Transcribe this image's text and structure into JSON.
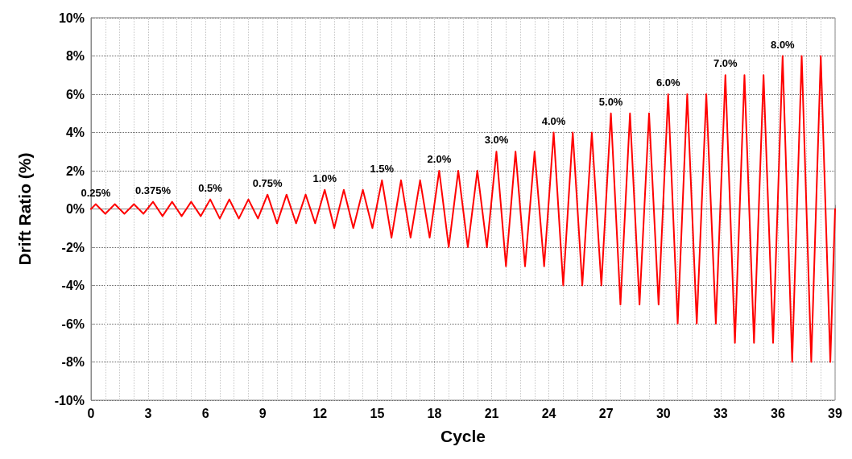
{
  "chart_data": {
    "type": "line",
    "xlabel": "Cycle",
    "ylabel": "Drift Ratio (%)",
    "x": [
      0,
      0.25,
      0.75,
      1.25,
      1.75,
      2.25,
      2.75,
      3.25,
      3.75,
      4.25,
      4.75,
      5.25,
      5.75,
      6.25,
      6.75,
      7.25,
      7.75,
      8.25,
      8.75,
      9.25,
      9.75,
      10.25,
      10.75,
      11.25,
      11.75,
      12.25,
      12.75,
      13.25,
      13.75,
      14.25,
      14.75,
      15.25,
      15.75,
      16.25,
      16.75,
      17.25,
      17.75,
      18.25,
      18.75,
      19.25,
      19.75,
      20.25,
      20.75,
      21.25,
      21.75,
      22.25,
      22.75,
      23.25,
      23.75,
      24.25,
      24.75,
      25.25,
      25.75,
      26.25,
      26.75,
      27.25,
      27.75,
      28.25,
      28.75,
      29.25,
      29.75,
      30.25,
      30.75,
      31.25,
      31.75,
      32.25,
      32.75,
      33.25,
      33.75,
      34.25,
      34.75,
      35.25,
      35.75,
      36.25,
      36.75,
      37.25,
      37.75,
      38.25,
      38.75,
      39
    ],
    "series": [
      {
        "color": "#ff0000",
        "values": [
          0,
          0.25,
          -0.25,
          0.25,
          -0.25,
          0.25,
          -0.25,
          0.375,
          -0.375,
          0.375,
          -0.375,
          0.375,
          -0.375,
          0.5,
          -0.5,
          0.5,
          -0.5,
          0.5,
          -0.5,
          0.75,
          -0.75,
          0.75,
          -0.75,
          0.75,
          -0.75,
          1,
          -1,
          1,
          -1,
          1,
          -1,
          1.5,
          -1.5,
          1.5,
          -1.5,
          1.5,
          -1.5,
          2,
          -2,
          2,
          -2,
          2,
          -2,
          3,
          -3,
          3,
          -3,
          3,
          -3,
          4,
          -4,
          4,
          -4,
          4,
          -4,
          5,
          -5,
          5,
          -5,
          5,
          -5,
          6,
          -6,
          6,
          -6,
          6,
          -6,
          7,
          -7,
          7,
          -7,
          7,
          -7,
          8,
          -8,
          8,
          -8,
          8,
          -8,
          0
        ]
      }
    ],
    "xlim": [
      0,
      39
    ],
    "xticks": [
      0,
      3,
      6,
      9,
      12,
      15,
      18,
      21,
      24,
      27,
      30,
      33,
      36,
      39
    ],
    "ylim": [
      -10,
      10
    ],
    "yticks": [
      {
        "value": -10,
        "label": "-10%"
      },
      {
        "value": -8,
        "label": "-8%"
      },
      {
        "value": -6,
        "label": "-6%"
      },
      {
        "value": -4,
        "label": "-4%"
      },
      {
        "value": -2,
        "label": "-2%"
      },
      {
        "value": 0,
        "label": "0%"
      },
      {
        "value": 2,
        "label": "2%"
      },
      {
        "value": 4,
        "label": "4%"
      },
      {
        "value": 6,
        "label": "6%"
      },
      {
        "value": 8,
        "label": "8%"
      },
      {
        "value": 10,
        "label": "10%"
      }
    ],
    "annotations": [
      {
        "text": "0.25%",
        "x": 0.25,
        "y": 0.25
      },
      {
        "text": "0.375%",
        "x": 3.25,
        "y": 0.375
      },
      {
        "text": "0.5%",
        "x": 6.25,
        "y": 0.5
      },
      {
        "text": "0.75%",
        "x": 9.25,
        "y": 0.75
      },
      {
        "text": "1.0%",
        "x": 12.25,
        "y": 1
      },
      {
        "text": "1.5%",
        "x": 15.25,
        "y": 1.5
      },
      {
        "text": "2.0%",
        "x": 18.25,
        "y": 2
      },
      {
        "text": "3.0%",
        "x": 21.25,
        "y": 3
      },
      {
        "text": "4.0%",
        "x": 24.25,
        "y": 4
      },
      {
        "text": "5.0%",
        "x": 27.25,
        "y": 5
      },
      {
        "text": "6.0%",
        "x": 30.25,
        "y": 6
      },
      {
        "text": "7.0%",
        "x": 33.25,
        "y": 7
      },
      {
        "text": "8.0%",
        "x": 36.25,
        "y": 8
      }
    ],
    "grid": true,
    "marker": "none",
    "line_style": "solid"
  }
}
